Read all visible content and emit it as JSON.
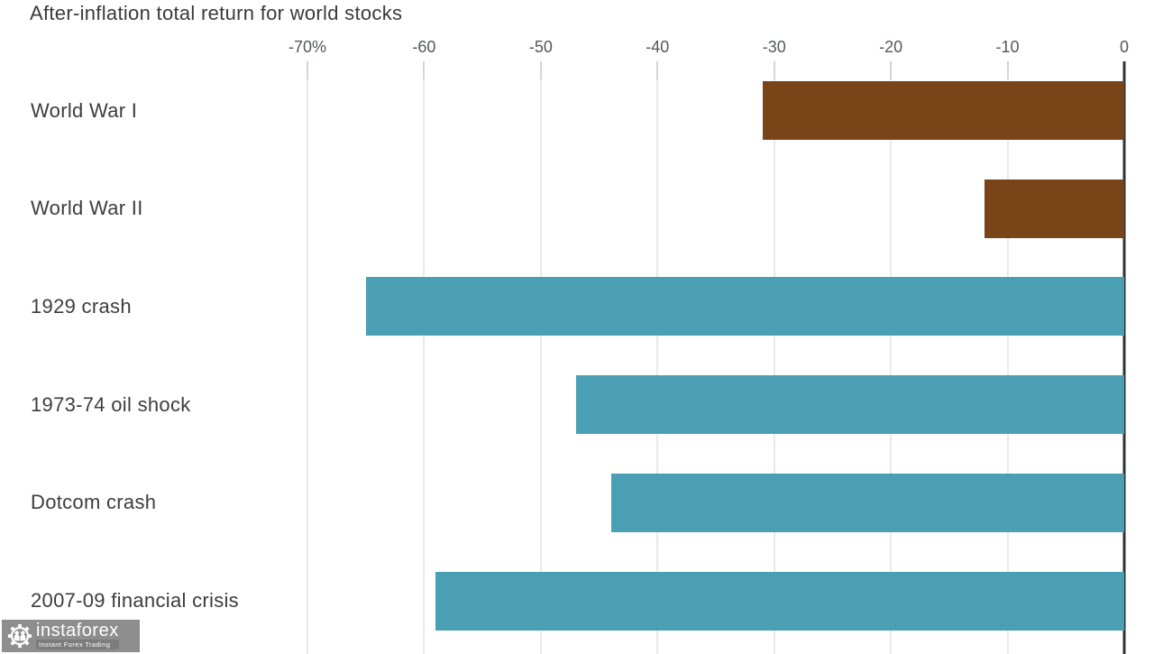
{
  "chart_data": {
    "type": "bar",
    "orientation": "horizontal",
    "title": "After-inflation total return for world stocks",
    "categories": [
      "World War I",
      "World War II",
      "1929 crash",
      "1973-74 oil shock",
      "Dotcom crash",
      "2007-09 financial crisis"
    ],
    "values": [
      -31,
      -12,
      -65,
      -47,
      -44,
      -59
    ],
    "unit": "percent",
    "xlim": [
      -70,
      0
    ],
    "x_ticks": [
      -70,
      -60,
      -50,
      -40,
      -30,
      -20,
      -10,
      0
    ],
    "x_tick_labels": [
      "-70%",
      "-60",
      "-50",
      "-40",
      "-30",
      "-20",
      "-10",
      "0"
    ],
    "bar_colors": [
      "#7a4419",
      "#7a4419",
      "#4a9fb4",
      "#4a9fb4",
      "#4a9fb4",
      "#4a9fb4"
    ],
    "colors": {
      "brown": "#7a4419",
      "teal": "#4a9fb4",
      "zero_axis": "#2e3338",
      "gridline": "#eaeaea",
      "title_text": "#3a3a3a",
      "tick_text": "#54585a"
    },
    "grid": "vertical",
    "legend": "none"
  },
  "logo": {
    "brand": "instaforex",
    "tagline": "Instant Forex Trading",
    "background": "#8e8e8e",
    "tagline_background": "#7c7c7c"
  }
}
